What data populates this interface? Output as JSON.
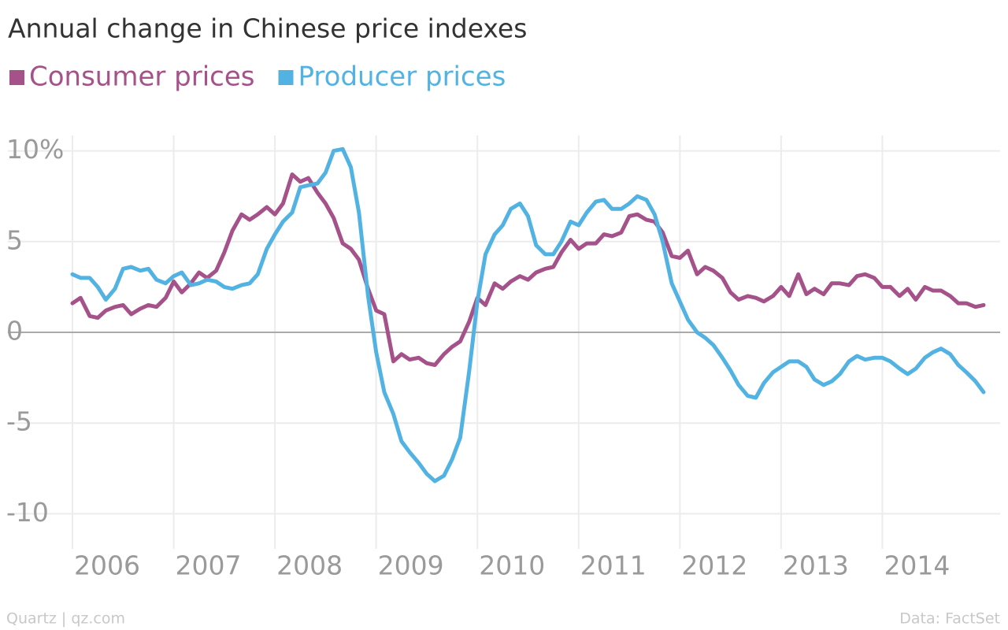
{
  "chart_data": {
    "type": "line",
    "title": "Annual change in Chinese price indexes",
    "footer_left": "Quartz | qz.com",
    "footer_right": "Data: FactSet",
    "x": [
      2006.0,
      2006.08,
      2006.17,
      2006.25,
      2006.33,
      2006.42,
      2006.5,
      2006.58,
      2006.67,
      2006.75,
      2006.83,
      2006.92,
      2007.0,
      2007.08,
      2007.17,
      2007.25,
      2007.33,
      2007.42,
      2007.5,
      2007.58,
      2007.67,
      2007.75,
      2007.83,
      2007.92,
      2008.0,
      2008.08,
      2008.17,
      2008.25,
      2008.33,
      2008.42,
      2008.5,
      2008.58,
      2008.67,
      2008.75,
      2008.83,
      2008.92,
      2009.0,
      2009.08,
      2009.17,
      2009.25,
      2009.33,
      2009.42,
      2009.5,
      2009.58,
      2009.67,
      2009.75,
      2009.83,
      2009.92,
      2010.0,
      2010.08,
      2010.17,
      2010.25,
      2010.33,
      2010.42,
      2010.5,
      2010.58,
      2010.67,
      2010.75,
      2010.83,
      2010.92,
      2011.0,
      2011.08,
      2011.17,
      2011.25,
      2011.33,
      2011.42,
      2011.5,
      2011.58,
      2011.67,
      2011.75,
      2011.83,
      2011.92,
      2012.0,
      2012.08,
      2012.17,
      2012.25,
      2012.33,
      2012.42,
      2012.5,
      2012.58,
      2012.67,
      2012.75,
      2012.83,
      2012.92,
      2013.0,
      2013.08,
      2013.17,
      2013.25,
      2013.33,
      2013.42,
      2013.5,
      2013.58,
      2013.67,
      2013.75,
      2013.83,
      2013.92,
      2014.0,
      2014.08,
      2014.17,
      2014.25,
      2014.33,
      2014.42,
      2014.5,
      2014.58,
      2014.67,
      2014.75,
      2014.83,
      2014.92,
      2015.0
    ],
    "series": [
      {
        "name": "Consumer prices",
        "color": "#a5528a",
        "values": [
          1.6,
          1.9,
          0.9,
          0.8,
          1.2,
          1.4,
          1.5,
          1.0,
          1.3,
          1.5,
          1.4,
          1.9,
          2.8,
          2.2,
          2.7,
          3.3,
          3.0,
          3.4,
          4.4,
          5.6,
          6.5,
          6.2,
          6.5,
          6.9,
          6.5,
          7.1,
          8.7,
          8.3,
          8.5,
          7.7,
          7.1,
          6.3,
          4.9,
          4.6,
          4.0,
          2.4,
          1.2,
          1.0,
          -1.6,
          -1.2,
          -1.5,
          -1.4,
          -1.7,
          -1.8,
          -1.2,
          -0.8,
          -0.5,
          0.6,
          1.9,
          1.5,
          2.7,
          2.4,
          2.8,
          3.1,
          2.9,
          3.3,
          3.5,
          3.6,
          4.4,
          5.1,
          4.6,
          4.9,
          4.9,
          5.4,
          5.3,
          5.5,
          6.4,
          6.5,
          6.2,
          6.1,
          5.5,
          4.2,
          4.1,
          4.5,
          3.2,
          3.6,
          3.4,
          3.0,
          2.2,
          1.8,
          2.0,
          1.9,
          1.7,
          2.0,
          2.5,
          2.0,
          3.2,
          2.1,
          2.4,
          2.1,
          2.7,
          2.7,
          2.6,
          3.1,
          3.2,
          3.0,
          2.5,
          2.5,
          2.0,
          2.4,
          1.8,
          2.5,
          2.3,
          2.3,
          2.0,
          1.6,
          1.6,
          1.4,
          1.5
        ]
      },
      {
        "name": "Producer prices",
        "color": "#52b3e3",
        "values": [
          3.2,
          3.0,
          3.0,
          2.5,
          1.8,
          2.4,
          3.5,
          3.6,
          3.4,
          3.5,
          2.9,
          2.7,
          3.1,
          3.3,
          2.6,
          2.7,
          2.9,
          2.8,
          2.5,
          2.4,
          2.6,
          2.7,
          3.2,
          4.6,
          5.4,
          6.1,
          6.6,
          8.0,
          8.1,
          8.2,
          8.8,
          10.0,
          10.1,
          9.1,
          6.6,
          2.0,
          -1.1,
          -3.3,
          -4.5,
          -6.0,
          -6.6,
          -7.2,
          -7.8,
          -8.2,
          -7.9,
          -7.0,
          -5.8,
          -2.1,
          1.7,
          4.3,
          5.4,
          5.9,
          6.8,
          7.1,
          6.4,
          4.8,
          4.3,
          4.3,
          5.0,
          6.1,
          5.9,
          6.6,
          7.2,
          7.3,
          6.8,
          6.8,
          7.1,
          7.5,
          7.3,
          6.5,
          5.0,
          2.7,
          1.7,
          0.7,
          0.0,
          -0.3,
          -0.7,
          -1.4,
          -2.1,
          -2.9,
          -3.5,
          -3.6,
          -2.8,
          -2.2,
          -1.9,
          -1.6,
          -1.6,
          -1.9,
          -2.6,
          -2.9,
          -2.7,
          -2.3,
          -1.6,
          -1.3,
          -1.5,
          -1.4,
          -1.4,
          -1.6,
          -2.0,
          -2.3,
          -2.0,
          -1.4,
          -1.1,
          -0.9,
          -1.2,
          -1.8,
          -2.2,
          -2.7,
          -3.3
        ]
      }
    ],
    "xlim": [
      2006,
      2015
    ],
    "xticks": [
      2006,
      2007,
      2008,
      2009,
      2010,
      2011,
      2012,
      2013,
      2014
    ],
    "ylim": [
      -11.5,
      11.5
    ],
    "yticks": [
      {
        "value": 10,
        "label": "10%"
      },
      5,
      0,
      -5,
      -10
    ],
    "grid": true
  }
}
